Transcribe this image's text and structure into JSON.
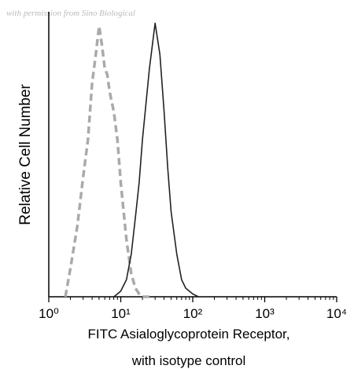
{
  "chart_data": {
    "type": "line",
    "watermark": "with permission from Sino Biological",
    "ylabel": "Relative Cell Number",
    "xlabel": [
      "FITC Asialoglycoprotein Receptor,",
      "with isotype control"
    ],
    "log_x": true,
    "minor_ticks": true,
    "xlim": [
      1,
      10000
    ],
    "xticks": [
      {
        "value": 1,
        "label": "10⁰"
      },
      {
        "value": 10,
        "label": "10¹"
      },
      {
        "value": 100,
        "label": "10²"
      },
      {
        "value": 1000,
        "label": "10³"
      },
      {
        "value": 10000,
        "label": "10⁴"
      }
    ],
    "ylim": [
      0,
      100
    ],
    "x": [
      1.5,
      1.7,
      2,
      2.5,
      3,
      3.5,
      4,
      4.5,
      5,
      5.5,
      6,
      6.5,
      7,
      8,
      9,
      10,
      12,
      14,
      16,
      18,
      20,
      25,
      30,
      35,
      40,
      45,
      50,
      60,
      70,
      80,
      100,
      120
    ],
    "series": [
      {
        "color": "#aaaaaa",
        "dashed": true,
        "values": [
          null,
          0,
          10,
          25,
          42,
          55,
          75,
          85,
          95,
          88,
          80,
          78,
          72,
          65,
          55,
          40,
          20,
          8,
          3,
          1,
          0,
          0,
          null,
          null,
          null,
          null,
          null,
          null,
          null,
          null,
          null,
          null
        ]
      },
      {
        "color": "#222222",
        "dashed": false,
        "values": [
          null,
          null,
          null,
          null,
          null,
          null,
          null,
          null,
          null,
          null,
          null,
          null,
          null,
          0,
          1,
          2,
          6,
          15,
          28,
          40,
          55,
          80,
          96,
          85,
          65,
          45,
          30,
          15,
          6,
          3,
          1,
          0
        ]
      }
    ]
  }
}
